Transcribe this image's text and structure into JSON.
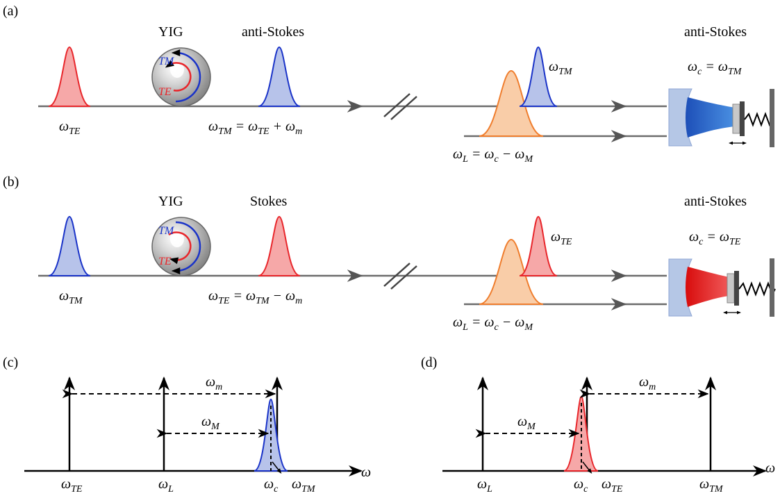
{
  "colors": {
    "red": "#e8262b",
    "blue": "#1a33c8",
    "orange": "#ef7d2d",
    "gray": "#6b6b6b",
    "mirror": "#9fb4dd"
  },
  "panels": {
    "a": {
      "label": "(a)",
      "yig": "YIG",
      "process_label": "anti-Stokes",
      "right_label": "anti-Stokes",
      "input_symbol": "ω",
      "input_sub": "TE",
      "out_left": "ω",
      "out_left_sub": "TM",
      "out_eq": " = ω",
      "out_mid_sub": "TE",
      "out_plus": " + ω",
      "out_end_sub": "m",
      "signal_symbol": "ω",
      "signal_sub": "TM",
      "res_left": "ω",
      "res_left_sub": "c",
      "res_eq": " = ω",
      "res_right_sub": "TM",
      "laser_left": "ω",
      "laser_left_sub": "L",
      "laser_eq": " = ω",
      "laser_mid_sub": "c",
      "laser_minus": " − ω",
      "laser_end_sub": "M",
      "sphere_top": "TM",
      "sphere_bottom": "TE"
    },
    "b": {
      "label": "(b)",
      "yig": "YIG",
      "process_label": "Stokes",
      "right_label": "anti-Stokes",
      "input_symbol": "ω",
      "input_sub": "TM",
      "out_left": "ω",
      "out_left_sub": "TE",
      "out_eq": " = ω",
      "out_mid_sub": "TM",
      "out_plus": " − ω",
      "out_end_sub": "m",
      "signal_symbol": "ω",
      "signal_sub": "TE",
      "res_left": "ω",
      "res_left_sub": "c",
      "res_eq": " = ω",
      "res_right_sub": "TE",
      "laser_left": "ω",
      "laser_left_sub": "L",
      "laser_eq": " = ω",
      "laser_mid_sub": "c",
      "laser_minus": " − ω",
      "laser_end_sub": "M",
      "sphere_top": "TM",
      "sphere_bottom": "TE"
    },
    "c": {
      "label": "(c)",
      "axis": "ω",
      "tick1": "ω",
      "tick1_sub": "TE",
      "tick2": "ω",
      "tick2_sub": "L",
      "tick3": "ω",
      "tick3_sub": "c",
      "tick4": "ω",
      "tick4_sub": "TM",
      "gap_big": "ω",
      "gap_big_sub": "m",
      "gap_small": "ω",
      "gap_small_sub": "M"
    },
    "d": {
      "label": "(d)",
      "axis": "ω",
      "tick1": "ω",
      "tick1_sub": "L",
      "tick2": "ω",
      "tick2_sub": "c",
      "tick3": "ω",
      "tick3_sub": "TE",
      "tick4": "ω",
      "tick4_sub": "TM",
      "gap_big": "ω",
      "gap_big_sub": "m",
      "gap_small": "ω",
      "gap_small_sub": "M"
    }
  }
}
